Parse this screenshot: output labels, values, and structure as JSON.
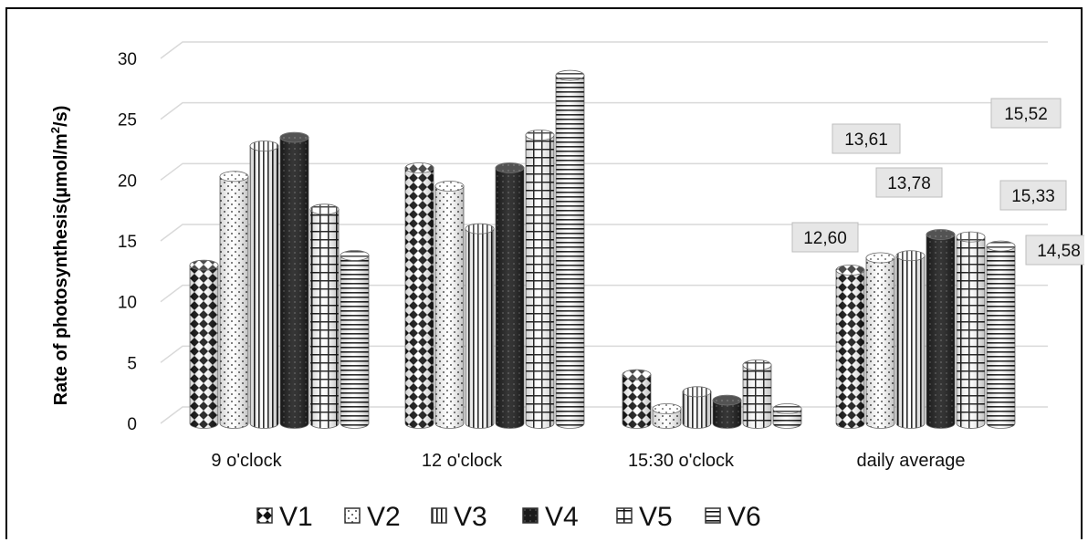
{
  "chart_data": {
    "type": "bar",
    "style": "3d-cylinder",
    "categories": [
      "9 o'clock",
      "12 o'clock",
      "15:30 o'clock",
      "daily average"
    ],
    "series": [
      {
        "name": "V1",
        "values": [
          13.0,
          21.0,
          4.0,
          12.6
        ]
      },
      {
        "name": "V2",
        "values": [
          20.3,
          19.5,
          1.2,
          13.61
        ]
      },
      {
        "name": "V3",
        "values": [
          22.8,
          16.0,
          2.6,
          13.78
        ]
      },
      {
        "name": "V4",
        "values": [
          23.5,
          21.0,
          1.9,
          15.52
        ]
      },
      {
        "name": "V5",
        "values": [
          17.6,
          23.7,
          4.8,
          15.33
        ]
      },
      {
        "name": "V6",
        "values": [
          13.8,
          28.6,
          1.2,
          14.58
        ]
      }
    ],
    "ylabel_main": "Rate of photosynthesis(µmol/m",
    "ylabel_sup": "2",
    "ylabel_tail": "/s)",
    "yticks": [
      "0",
      "5",
      "10",
      "15",
      "20",
      "25",
      "30"
    ],
    "ylim": [
      0,
      30
    ],
    "grid": true,
    "legend_position": "bottom",
    "data_labels": [
      {
        "text": "12,60",
        "series": "V1",
        "category": "daily average"
      },
      {
        "text": "13,61",
        "series": "V2",
        "category": "daily average"
      },
      {
        "text": "13,78",
        "series": "V3",
        "category": "daily average"
      },
      {
        "text": "15,52",
        "series": "V4",
        "category": "daily average"
      },
      {
        "text": "15,33",
        "series": "V5",
        "category": "daily average"
      },
      {
        "text": "14,58",
        "series": "V6",
        "category": "daily average"
      }
    ],
    "colors": {
      "bar_dark": "#111111",
      "bar_light": "#ffffff",
      "grid": "#d9d9d9",
      "label_box": "#e6e6e6"
    }
  }
}
